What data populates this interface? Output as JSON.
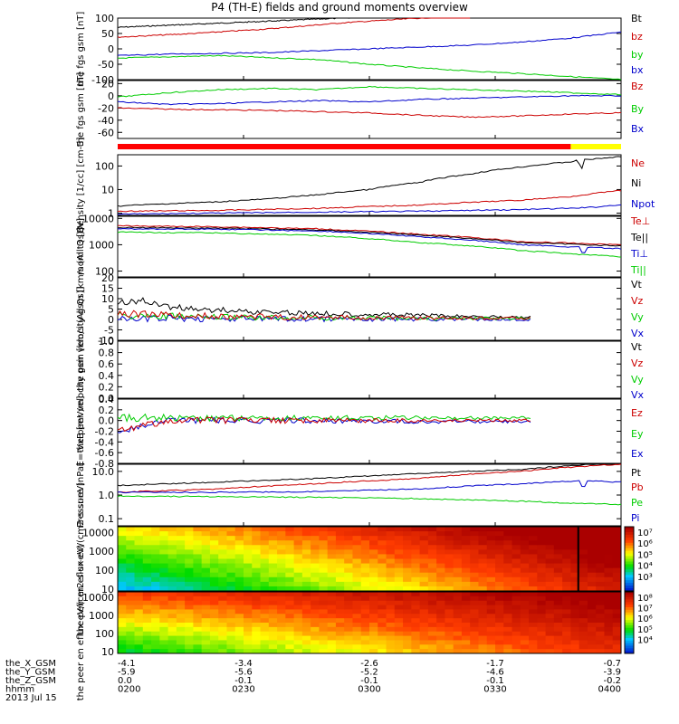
{
  "title": "P4 (TH-E) fields and ground moments overview",
  "date_label": "2013 Jul 15",
  "colors": {
    "black": "#000000",
    "red": "#cc0000",
    "green": "#00cc00",
    "blue": "#0000cc",
    "yellow": "#ffff00"
  },
  "chart_data": [
    {
      "type": "line",
      "ylabel": "the fgs gsm [nT]",
      "ylim": [
        -100,
        100
      ],
      "log": false,
      "yticks": [
        {
          "v": 100,
          "label": "100"
        },
        {
          "v": 50,
          "label": "50"
        },
        {
          "v": 0,
          "label": "0"
        },
        {
          "v": -50,
          "label": "-50"
        },
        {
          "v": -100,
          "label": "-100"
        }
      ],
      "legend": [
        {
          "name": "Bt",
          "color": "#000000"
        },
        {
          "name": "bz",
          "color": "#cc0000"
        },
        {
          "name": "by",
          "color": "#00cc00"
        },
        {
          "name": "bx",
          "color": "#0000cc"
        }
      ],
      "series": [
        {
          "name": "Bt",
          "color": "#000000",
          "x": [
            0,
            0.15,
            0.3,
            0.5,
            0.52
          ],
          "y": [
            70,
            80,
            90,
            104,
            106
          ]
        },
        {
          "name": "bz",
          "color": "#cc0000",
          "x": [
            0,
            0.15,
            0.3,
            0.45,
            0.6,
            0.7
          ],
          "y": [
            38,
            50,
            65,
            85,
            100,
            105
          ]
        },
        {
          "name": "by",
          "color": "#00cc00",
          "x": [
            0,
            0.2,
            0.4,
            0.5,
            0.6,
            0.7,
            0.8,
            0.9,
            1.0
          ],
          "y": [
            -30,
            -22,
            -35,
            -50,
            -62,
            -72,
            -80,
            -90,
            -100
          ]
        },
        {
          "name": "bx",
          "color": "#0000cc",
          "x": [
            0,
            0.1,
            0.3,
            0.5,
            0.7,
            0.8,
            0.9,
            1.0
          ],
          "y": [
            -22,
            -17,
            -12,
            0,
            12,
            22,
            35,
            55
          ]
        }
      ]
    },
    {
      "type": "line",
      "ylabel": "the fgs gsm [nT]",
      "ylim": [
        -70,
        25
      ],
      "log": false,
      "yticks": [
        {
          "v": 20,
          "label": "20"
        },
        {
          "v": 0,
          "label": "0"
        },
        {
          "v": -20,
          "label": "-20"
        },
        {
          "v": -40,
          "label": "-40"
        },
        {
          "v": -60,
          "label": "-60"
        }
      ],
      "legend": [
        {
          "name": "Bz",
          "color": "#cc0000"
        },
        {
          "name": "By",
          "color": "#00cc00"
        },
        {
          "name": "Bx",
          "color": "#0000cc"
        }
      ],
      "series": [
        {
          "name": "Bz",
          "color": "#cc0000",
          "x": [
            0,
            0.1,
            0.3,
            0.5,
            0.6,
            0.7,
            0.8,
            0.9,
            1.0
          ],
          "y": [
            -20,
            -22,
            -24,
            -28,
            -32,
            -35,
            -33,
            -30,
            -28
          ]
        },
        {
          "name": "By",
          "color": "#00cc00",
          "x": [
            0,
            0.1,
            0.2,
            0.3,
            0.4,
            0.5,
            0.6,
            0.7,
            0.8,
            0.9,
            1.0
          ],
          "y": [
            -2,
            5,
            10,
            12,
            10,
            15,
            12,
            10,
            8,
            5,
            2
          ]
        },
        {
          "name": "Bx",
          "color": "#0000cc",
          "x": [
            0,
            0.1,
            0.2,
            0.3,
            0.4,
            0.5,
            0.6,
            0.7,
            0.8,
            0.9,
            1.0
          ],
          "y": [
            -10,
            -14,
            -13,
            -10,
            -8,
            -10,
            -6,
            -4,
            -2,
            0,
            0
          ]
        }
      ]
    },
    {
      "type": "line",
      "ylabel": "Density [1/cc] [cm-3]",
      "ylim": [
        0.8,
        300
      ],
      "log": true,
      "yticks": [
        {
          "v": 100,
          "label": "100"
        },
        {
          "v": 10,
          "label": "10"
        },
        {
          "v": 1,
          "label": "1"
        }
      ],
      "legend": [
        {
          "name": "Ne",
          "color": "#cc0000"
        },
        {
          "name": "Ni",
          "color": "#000000"
        },
        {
          "name": "Npot",
          "color": "#0000cc"
        }
      ],
      "series": [
        {
          "name": "Ni",
          "color": "#000000",
          "x": [
            0,
            0.1,
            0.2,
            0.3,
            0.4,
            0.5,
            0.6,
            0.7,
            0.8,
            0.9,
            0.915,
            0.92,
            0.925,
            0.93,
            0.95,
            1.0
          ],
          "y": [
            2,
            2.5,
            3,
            4,
            6,
            10,
            20,
            45,
            90,
            150,
            180,
            3,
            180,
            190,
            200,
            250
          ]
        },
        {
          "name": "Ne",
          "color": "#cc0000",
          "x": [
            0,
            0.2,
            0.4,
            0.6,
            0.8,
            0.9,
            0.95,
            1.0
          ],
          "y": [
            1.2,
            1.3,
            1.6,
            2.2,
            3.5,
            5,
            7,
            9
          ]
        },
        {
          "name": "Npot",
          "color": "#0000cc",
          "x": [
            0,
            0.2,
            0.4,
            0.6,
            0.8,
            0.9,
            0.95,
            1.0
          ],
          "y": [
            0.9,
            1.0,
            1.1,
            1.2,
            1.4,
            1.6,
            1.8,
            2.3
          ]
        }
      ]
    },
    {
      "type": "line",
      "ylabel": "mom t3 [eV]",
      "ylim": [
        60,
        12000
      ],
      "log": true,
      "yticks": [
        {
          "v": 10000,
          "label": "10000"
        },
        {
          "v": 1000,
          "label": "1000"
        },
        {
          "v": 100,
          "label": "100"
        }
      ],
      "legend": [
        {
          "name": "Te⊥",
          "color": "#cc0000"
        },
        {
          "name": "Te||",
          "color": "#000000"
        },
        {
          "name": "Ti⊥",
          "color": "#0000cc"
        },
        {
          "name": "Ti||",
          "color": "#00cc00"
        }
      ],
      "series": [
        {
          "name": "Te⊥",
          "color": "#cc0000",
          "x": [
            0,
            0.2,
            0.4,
            0.6,
            0.8,
            1.0
          ],
          "y": [
            5200,
            4800,
            4000,
            2500,
            1300,
            1000
          ]
        },
        {
          "name": "Te||",
          "color": "#000000",
          "x": [
            0,
            0.2,
            0.4,
            0.6,
            0.8,
            1.0
          ],
          "y": [
            4500,
            4300,
            3600,
            2300,
            1200,
            900
          ]
        },
        {
          "name": "Ti⊥",
          "color": "#0000cc",
          "x": [
            0,
            0.2,
            0.4,
            0.6,
            0.8,
            0.92,
            0.925,
            0.93,
            1.0
          ],
          "y": [
            4000,
            3900,
            3300,
            2000,
            1000,
            800,
            150,
            800,
            700
          ]
        },
        {
          "name": "Ti||",
          "color": "#00cc00",
          "x": [
            0,
            0.2,
            0.4,
            0.6,
            0.8,
            0.9,
            1.0
          ],
          "y": [
            3000,
            2800,
            2200,
            1200,
            600,
            450,
            350
          ]
        }
      ]
    },
    {
      "type": "line",
      "ylabel": "the peir velocity gsm [km/s (All Qs)]",
      "ylim": [
        -10,
        20
      ],
      "log": false,
      "yticks": [
        {
          "v": 20,
          "label": "20"
        },
        {
          "v": 15,
          "label": "15"
        },
        {
          "v": 10,
          "label": "10"
        },
        {
          "v": 5,
          "label": "5"
        },
        {
          "v": 0,
          "label": "0"
        },
        {
          "v": -5,
          "label": "-5"
        },
        {
          "v": -10,
          "label": "-10"
        }
      ],
      "legend": [
        {
          "name": "Vt",
          "color": "#000000"
        },
        {
          "name": "Vz",
          "color": "#cc0000"
        },
        {
          "name": "Vy",
          "color": "#00cc00"
        },
        {
          "name": "Vx",
          "color": "#0000cc"
        }
      ],
      "series": [
        {
          "name": "Vt",
          "color": "#000000",
          "x": [
            0,
            0.05,
            0.1,
            0.2,
            0.3,
            0.4,
            0.5,
            0.6,
            0.7,
            0.82
          ],
          "y": [
            8,
            9,
            6,
            4.5,
            3.5,
            3,
            2.5,
            2,
            1.5,
            1
          ]
        },
        {
          "name": "Vx",
          "color": "#0000cc",
          "x": [
            0,
            0.1,
            0.2,
            0.4,
            0.6,
            0.82
          ],
          "y": [
            0,
            0.5,
            0.3,
            0.2,
            0.1,
            0
          ]
        },
        {
          "name": "Vy",
          "color": "#00cc00",
          "x": [
            0,
            0.1,
            0.2,
            0.4,
            0.6,
            0.82
          ],
          "y": [
            2,
            1.5,
            1,
            0.8,
            0.5,
            0.5
          ]
        },
        {
          "name": "Vz",
          "color": "#cc0000",
          "x": [
            0,
            0.1,
            0.2,
            0.4,
            0.6,
            0.82
          ],
          "y": [
            3,
            2,
            1.5,
            1,
            0.8,
            0.5
          ]
        }
      ]
    },
    {
      "type": "line",
      "ylabel": "the peer velocity gsm [km/s (All Qs)]",
      "ylim": [
        0,
        1
      ],
      "log": false,
      "yticks": [
        {
          "v": 1.0,
          "label": "1.0"
        },
        {
          "v": 0.8,
          "label": "0.8"
        },
        {
          "v": 0.6,
          "label": "0.6"
        },
        {
          "v": 0.4,
          "label": "0.4"
        },
        {
          "v": 0.2,
          "label": "0.2"
        },
        {
          "v": 0.0,
          "label": "0.0"
        }
      ],
      "legend": [
        {
          "name": "Vt",
          "color": "#000000"
        },
        {
          "name": "Vz",
          "color": "#cc0000"
        },
        {
          "name": "Vy",
          "color": "#00cc00"
        },
        {
          "name": "Vx",
          "color": "#0000cc"
        }
      ],
      "series": []
    },
    {
      "type": "line",
      "ylabel": "E=-VxB [mV/m]",
      "ylim": [
        -0.8,
        0.4
      ],
      "log": false,
      "yticks": [
        {
          "v": 0.4,
          "label": "0.4"
        },
        {
          "v": 0.2,
          "label": "0.2"
        },
        {
          "v": 0.0,
          "label": "0.0"
        },
        {
          "v": -0.2,
          "label": "-0.2"
        },
        {
          "v": -0.4,
          "label": "-0.4"
        },
        {
          "v": -0.6,
          "label": "-0.6"
        },
        {
          "v": -0.8,
          "label": "-0.8"
        }
      ],
      "legend": [
        {
          "name": "Ez",
          "color": "#cc0000"
        },
        {
          "name": "Ey",
          "color": "#00cc00"
        },
        {
          "name": "Ex",
          "color": "#0000cc"
        }
      ],
      "series": [
        {
          "name": "Ex",
          "color": "#0000cc",
          "x": [
            0,
            0.05,
            0.1,
            0.2,
            0.4,
            0.6,
            0.82
          ],
          "y": [
            -0.2,
            -0.1,
            0,
            0,
            0,
            -0.02,
            -0.02
          ]
        },
        {
          "name": "Ey",
          "color": "#00cc00",
          "x": [
            0,
            0.05,
            0.1,
            0.2,
            0.4,
            0.6,
            0.82
          ],
          "y": [
            0.05,
            0.05,
            0.05,
            0.05,
            0.05,
            0.05,
            0.05
          ]
        },
        {
          "name": "Ez",
          "color": "#cc0000",
          "x": [
            0,
            0.05,
            0.1,
            0.2,
            0.4,
            0.6,
            0.82
          ],
          "y": [
            -0.2,
            -0.1,
            0,
            0,
            0,
            0,
            0
          ]
        }
      ]
    },
    {
      "type": "line",
      "ylabel": "Pressure [nPa]",
      "ylim": [
        0.05,
        20
      ],
      "log": true,
      "yticks": [
        {
          "v": 10,
          "label": "10.0"
        },
        {
          "v": 1,
          "label": "1.0"
        },
        {
          "v": 0.1,
          "label": "0.1"
        }
      ],
      "legend": [
        {
          "name": "Pt",
          "color": "#000000"
        },
        {
          "name": "Pb",
          "color": "#cc0000"
        },
        {
          "name": "Pe",
          "color": "#00cc00"
        },
        {
          "name": "Pi",
          "color": "#0000cc"
        }
      ],
      "series": [
        {
          "name": "Pt",
          "color": "#000000",
          "x": [
            0,
            0.2,
            0.4,
            0.6,
            0.8,
            0.95
          ],
          "y": [
            2.5,
            3.5,
            5,
            8,
            12,
            20
          ]
        },
        {
          "name": "Pb",
          "color": "#cc0000",
          "x": [
            0,
            0.2,
            0.4,
            0.6,
            0.8,
            1.0
          ],
          "y": [
            1.3,
            1.8,
            3,
            5,
            10,
            20
          ]
        },
        {
          "name": "Pe",
          "color": "#00cc00",
          "x": [
            0,
            0.2,
            0.4,
            0.6,
            0.8,
            0.9,
            1.0
          ],
          "y": [
            0.9,
            0.85,
            0.8,
            0.7,
            0.55,
            0.45,
            0.4
          ]
        },
        {
          "name": "Pi",
          "color": "#0000cc",
          "x": [
            0,
            0.2,
            0.4,
            0.6,
            0.8,
            0.92,
            0.925,
            0.93,
            1.0
          ],
          "y": [
            1.3,
            1.3,
            1.4,
            1.8,
            3,
            4,
            0.06,
            4,
            3.5
          ]
        }
      ]
    },
    {
      "type": "heatmap",
      "ylabel": "the peir en eflux eV/(cm2-s-sr-eV)",
      "ylim": [
        8,
        20000
      ],
      "log": true,
      "yticks": [
        {
          "v": 10000,
          "label": "10000"
        },
        {
          "v": 1000,
          "label": "1000"
        },
        {
          "v": 100,
          "label": "100"
        },
        {
          "v": 10,
          "label": "10"
        }
      ],
      "colorbar_ticks": [
        "10⁷",
        "10⁶",
        "10⁵",
        "10⁴",
        "10³"
      ]
    },
    {
      "type": "heatmap",
      "ylabel": "the peer en eflux eV/(cm2-s-sr-eV)",
      "ylim": [
        8,
        20000
      ],
      "log": true,
      "yticks": [
        {
          "v": 10000,
          "label": "10000"
        },
        {
          "v": 1000,
          "label": "1000"
        },
        {
          "v": 100,
          "label": "100"
        },
        {
          "v": 10,
          "label": "10"
        }
      ],
      "colorbar_ticks": [
        "10⁸",
        "10⁷",
        "10⁶",
        "10⁵",
        "10⁴"
      ]
    }
  ],
  "xaxis": {
    "rows": [
      {
        "label": "the_X_GSM",
        "values": [
          "-4.1",
          "-3.4",
          "-2.6",
          "-1.7",
          "-0.7"
        ]
      },
      {
        "label": "the_Y_GSM",
        "values": [
          "-5.9",
          "-5.6",
          "-5.2",
          "-4.6",
          "-3.9"
        ]
      },
      {
        "label": "the_Z_GSM",
        "values": [
          "0.0",
          "-0.1",
          "-0.1",
          "-0.1",
          "-0.2"
        ]
      },
      {
        "label": "hhmm",
        "values": [
          "0200",
          "0230",
          "0300",
          "0330",
          "0400"
        ]
      }
    ]
  }
}
